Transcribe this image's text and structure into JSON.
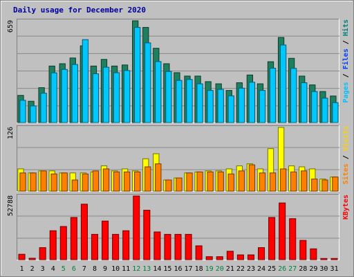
{
  "chart_data": {
    "type": "bar",
    "title": "Daily usage for December 2020",
    "categories": [
      "1",
      "2",
      "3",
      "4",
      "5",
      "6",
      "7",
      "8",
      "9",
      "10",
      "11",
      "12",
      "13",
      "14",
      "15",
      "16",
      "17",
      "18",
      "19",
      "20",
      "21",
      "22",
      "23",
      "24",
      "25",
      "26",
      "27",
      "28",
      "29",
      "30",
      "31"
    ],
    "weekend_days": [
      "5",
      "6",
      "12",
      "13",
      "19",
      "20",
      "26",
      "27"
    ],
    "panels": [
      {
        "id": "hits",
        "ymax_label": "659",
        "ylim": [
          0,
          659
        ],
        "legend": [
          "Pages",
          "Files",
          "Hits"
        ],
        "legend_colors": [
          "#00c0ff",
          "#0040ff",
          "#008080"
        ],
        "series": [
          {
            "name": "Hits",
            "color": "#1e8060",
            "values": [
              176,
              138,
              226,
              366,
              381,
              418,
              497,
              366,
              409,
              366,
              373,
              659,
              616,
              481,
              381,
              323,
              301,
              301,
              265,
              251,
              208,
              258,
              308,
              251,
              394,
              551,
              416,
              301,
              244,
              201,
              172
            ]
          },
          {
            "name": "Files",
            "color": "#00c8ff",
            "values": [
              144,
              108,
              190,
              322,
              344,
              376,
              537,
              316,
              358,
              323,
              337,
              616,
              516,
              395,
              331,
              273,
              279,
              251,
              208,
              215,
              173,
              223,
              261,
              208,
              352,
              502,
              351,
              258,
              201,
              158,
              129
            ]
          }
        ]
      },
      {
        "id": "visits",
        "ymax_label": "126",
        "ylim": [
          0,
          126
        ],
        "legend": [
          "Sites",
          "Visits"
        ],
        "legend_colors": [
          "#ff8000",
          "#ffd000"
        ],
        "series": [
          {
            "name": "Visits",
            "color": "#ffff00",
            "values": [
              44,
              36,
              40,
              40,
              36,
              36,
              36,
              38,
              50,
              40,
              44,
              40,
              64,
              74,
              22,
              26,
              36,
              38,
              40,
              40,
              44,
              50,
              54,
              44,
              84,
              126,
              50,
              48,
              44,
              24,
              28
            ]
          },
          {
            "name": "Sites",
            "color": "#ff8000",
            "values": [
              36,
              36,
              40,
              34,
              36,
              22,
              34,
              40,
              44,
              38,
              38,
              38,
              48,
              54,
              22,
              26,
              36,
              38,
              38,
              38,
              34,
              40,
              52,
              36,
              36,
              44,
              38,
              40,
              24,
              22,
              28
            ]
          }
        ]
      },
      {
        "id": "kbytes",
        "ymax_label": "52788",
        "ylim": [
          0,
          52788
        ],
        "legend": [
          "KBytes"
        ],
        "legend_colors": [
          "#ff0000"
        ],
        "series": [
          {
            "name": "KBytes",
            "color": "#ff0000",
            "values": [
              4500,
              1200,
              10000,
              24000,
              27500,
              35000,
              46000,
              21000,
              32000,
              21000,
              24000,
              52788,
              41000,
              23000,
              21000,
              21000,
              21000,
              11500,
              2500,
              2500,
              7000,
              4000,
              4000,
              10000,
              35000,
              47000,
              34000,
              16000,
              9000,
              1000,
              1000
            ]
          }
        ]
      }
    ]
  }
}
